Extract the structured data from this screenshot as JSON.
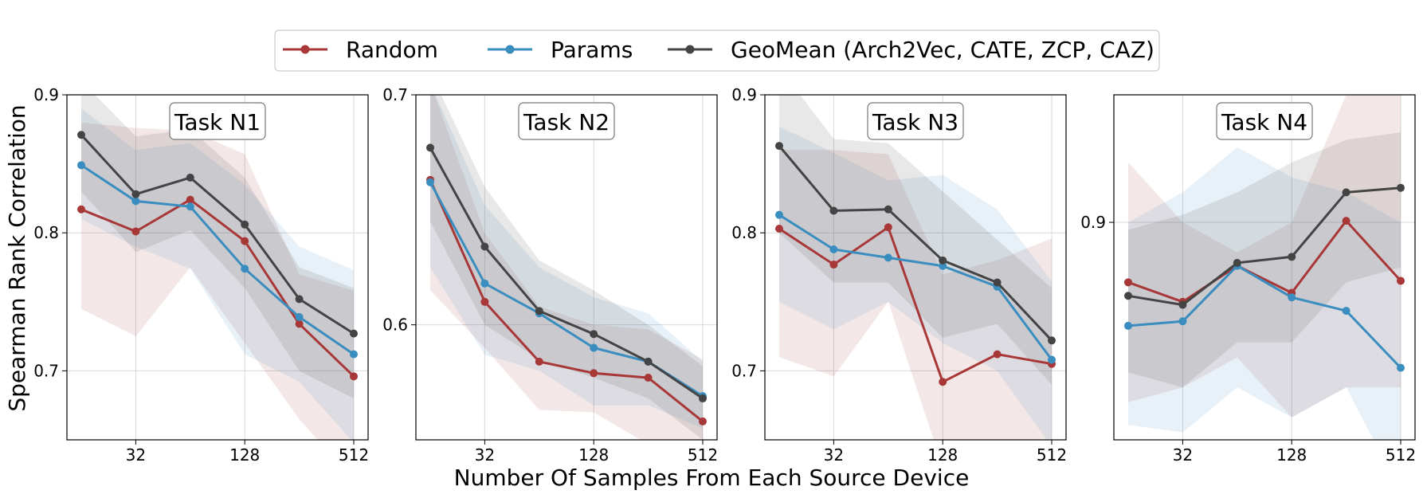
{
  "chart_data": {
    "type": "line",
    "xlabel": "Number Of Samples From Each Source Device",
    "ylabel": "Spearman Rank Correlation",
    "x_scale": "log2",
    "x": [
      16,
      32,
      64,
      128,
      256,
      512
    ],
    "xticks": [
      32,
      128,
      512
    ],
    "grid": true,
    "legend": {
      "placement": "top-center",
      "entries": [
        "Random",
        "Params",
        "GeoMean (Arch2Vec, CATE, ZCP, CAZ)"
      ]
    },
    "colors": {
      "Random": "#a83838",
      "Params": "#3a8dbf",
      "GeoMean (Arch2Vec, CATE, ZCP, CAZ)": "#444444"
    },
    "panels": [
      {
        "title": "Task N1",
        "ylim": [
          0.65,
          0.9
        ],
        "yticks": [
          0.7,
          0.8,
          0.9
        ],
        "series": [
          {
            "name": "Random",
            "values": [
              0.817,
              0.801,
              0.824,
              0.794,
              0.734,
              0.696
            ],
            "band_low": [
              0.745,
              0.725,
              0.775,
              0.72,
              0.665,
              0.62
            ],
            "band_high": [
              0.88,
              0.876,
              0.874,
              0.857,
              0.77,
              0.758
            ]
          },
          {
            "name": "Params",
            "values": [
              0.849,
              0.823,
              0.819,
              0.774,
              0.739,
              0.712
            ],
            "band_low": [
              0.81,
              0.79,
              0.774,
              0.712,
              0.692,
              0.648
            ],
            "band_high": [
              0.89,
              0.86,
              0.865,
              0.835,
              0.79,
              0.773
            ]
          },
          {
            "name": "GeoMean (Arch2Vec, CATE, ZCP, CAZ)",
            "values": [
              0.871,
              0.828,
              0.84,
              0.806,
              0.752,
              0.727
            ],
            "band_low": [
              0.83,
              0.786,
              0.802,
              0.76,
              0.7,
              0.68
            ],
            "band_high": [
              0.91,
              0.87,
              0.875,
              0.84,
              0.775,
              0.76
            ]
          }
        ]
      },
      {
        "title": "Task N2",
        "ylim": [
          0.55,
          0.7
        ],
        "yticks": [
          0.6,
          0.7
        ],
        "series": [
          {
            "name": "Random",
            "values": [
              0.663,
              0.61,
              0.584,
              0.579,
              0.577,
              0.558
            ],
            "band_low": [
              0.615,
              0.59,
              0.563,
              0.562,
              0.548,
              0.53
            ],
            "band_high": [
              0.705,
              0.64,
              0.608,
              0.6,
              0.598,
              0.585
            ]
          },
          {
            "name": "Params",
            "values": [
              0.662,
              0.618,
              0.605,
              0.59,
              0.584,
              0.569
            ],
            "band_low": [
              0.625,
              0.587,
              0.58,
              0.565,
              0.565,
              0.555
            ],
            "band_high": [
              0.705,
              0.652,
              0.625,
              0.612,
              0.605,
              0.584
            ]
          },
          {
            "name": "GeoMean (Arch2Vec, CATE, ZCP, CAZ)",
            "values": [
              0.677,
              0.634,
              0.606,
              0.596,
              0.584,
              0.568
            ],
            "band_low": [
              0.645,
              0.6,
              0.585,
              0.577,
              0.568,
              0.55
            ],
            "band_high": [
              0.71,
              0.66,
              0.628,
              0.615,
              0.6,
              0.582
            ]
          }
        ]
      },
      {
        "title": "Task N3",
        "ylim": [
          0.65,
          0.9
        ],
        "yticks": [
          0.7,
          0.8,
          0.9
        ],
        "series": [
          {
            "name": "Random",
            "values": [
              0.803,
              0.777,
              0.804,
              0.692,
              0.712,
              0.705
            ],
            "band_low": [
              0.71,
              0.696,
              0.75,
              0.63,
              0.64,
              0.64
            ],
            "band_high": [
              0.86,
              0.86,
              0.857,
              0.77,
              0.78,
              0.796
            ]
          },
          {
            "name": "Params",
            "values": [
              0.813,
              0.788,
              0.782,
              0.776,
              0.761,
              0.708
            ],
            "band_low": [
              0.75,
              0.73,
              0.75,
              0.72,
              0.7,
              0.645
            ],
            "band_high": [
              0.877,
              0.858,
              0.838,
              0.842,
              0.817,
              0.765
            ]
          },
          {
            "name": "GeoMean (Arch2Vec, CATE, ZCP, CAZ)",
            "values": [
              0.863,
              0.816,
              0.817,
              0.78,
              0.764,
              0.722
            ],
            "band_low": [
              0.8,
              0.764,
              0.764,
              0.724,
              0.734,
              0.69
            ],
            "band_high": [
              0.92,
              0.868,
              0.865,
              0.83,
              0.795,
              0.76
            ]
          }
        ]
      },
      {
        "title": "Task N4",
        "ylim": [
          0.755,
          0.985
        ],
        "yticks": [
          0.9
        ],
        "series": [
          {
            "name": "Random",
            "values": [
              0.86,
              0.847,
              0.871,
              0.853,
              0.901,
              0.861
            ],
            "band_low": [
              0.78,
              0.79,
              0.81,
              0.77,
              0.79,
              0.79
            ],
            "band_high": [
              0.94,
              0.9,
              0.88,
              0.9,
              0.985,
              0.985
            ]
          },
          {
            "name": "Params",
            "values": [
              0.831,
              0.834,
              0.871,
              0.85,
              0.841,
              0.803
            ],
            "band_low": [
              0.765,
              0.76,
              0.79,
              0.77,
              0.79,
              0.72
            ],
            "band_high": [
              0.9,
              0.92,
              0.95,
              0.93,
              0.92,
              0.9
            ]
          },
          {
            "name": "GeoMean (Arch2Vec, CATE, ZCP, CAZ)",
            "values": [
              0.851,
              0.845,
              0.873,
              0.877,
              0.92,
              0.923
            ],
            "band_low": [
              0.8,
              0.79,
              0.82,
              0.82,
              0.86,
              0.87
            ],
            "band_high": [
              0.895,
              0.905,
              0.92,
              0.94,
              0.955,
              0.96
            ]
          }
        ]
      }
    ]
  }
}
